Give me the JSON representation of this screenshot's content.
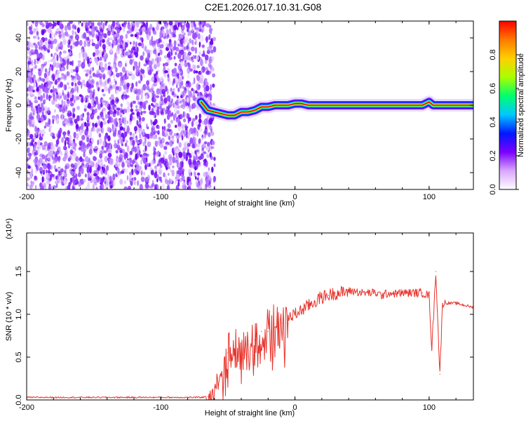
{
  "title": "C2E1.2026.017.10.31.G08",
  "chart_data": [
    {
      "type": "heatmap",
      "xlabel": "Height of straight line (km)",
      "ylabel": "Frequency (Hz)",
      "xlim": [
        -200,
        133
      ],
      "ylim": [
        -50,
        50
      ],
      "xticks": [
        "-200",
        "-100",
        "0",
        "100"
      ],
      "yticks": [
        "-40",
        "-20",
        "0",
        "20",
        "40"
      ],
      "colorbar": {
        "label": "Normalized spectral amplitude",
        "range": [
          0,
          1
        ],
        "ticks": [
          "0.0",
          "0.2",
          "0.4",
          "0.6",
          "0.8"
        ],
        "colormap": [
          "#ffffff",
          "#d9a6ff",
          "#7a00ff",
          "#0018ff",
          "#00c8ff",
          "#00ff6e",
          "#a8ff00",
          "#ffd000",
          "#ff7a00",
          "#ff0000"
        ]
      },
      "signal_track": {
        "x": [
          -70,
          -65,
          -60,
          -55,
          -50,
          -45,
          -40,
          -35,
          -30,
          -25,
          -20,
          -15,
          -10,
          -5,
          0,
          5,
          10,
          20,
          40,
          60,
          80,
          95,
          100,
          103,
          110,
          133
        ],
        "y": [
          2,
          -3,
          -4,
          -5,
          -6,
          -6,
          -4,
          -4,
          -3,
          -1,
          -1,
          0,
          0,
          0,
          1,
          1,
          0,
          0,
          0,
          0,
          0,
          0,
          2,
          0,
          0,
          0
        ]
      },
      "noise_region_x": [
        -200,
        -63
      ],
      "grid": false
    },
    {
      "type": "line",
      "xlabel": "Height of straight line (km)",
      "ylabel": "SNR (10 * v/v)",
      "multiplier": "(x10⁴)",
      "xlim": [
        -200,
        133
      ],
      "ylim": [
        0,
        1.95
      ],
      "xticks": [
        "-200",
        "-100",
        "0",
        "100"
      ],
      "yticks": [
        "0.0",
        "0.5",
        "1.0",
        "1.5"
      ],
      "color": "#e8322a",
      "grid": false,
      "series": [
        {
          "x": [
            -200,
            -180,
            -160,
            -140,
            -120,
            -100,
            -80,
            -70,
            -65,
            -60,
            -55,
            -50,
            -45,
            -40,
            -35,
            -30,
            -25,
            -20,
            -15,
            -10,
            -5,
            0,
            5,
            10,
            15,
            20,
            25,
            30,
            35,
            40,
            45,
            50,
            55,
            60,
            65,
            70,
            75,
            80,
            85,
            90,
            95,
            100,
            102,
            105,
            108,
            110,
            120,
            133
          ],
          "y": [
            0.03,
            0.03,
            0.03,
            0.03,
            0.03,
            0.03,
            0.03,
            0.03,
            0.04,
            0.15,
            0.3,
            0.55,
            0.6,
            0.5,
            0.65,
            0.7,
            0.8,
            0.8,
            0.85,
            0.9,
            0.95,
            1.0,
            1.05,
            1.1,
            1.15,
            1.2,
            1.22,
            1.25,
            1.25,
            1.27,
            1.27,
            1.25,
            1.25,
            1.25,
            1.22,
            1.25,
            1.24,
            1.25,
            1.25,
            1.25,
            1.25,
            1.22,
            0.6,
            1.5,
            0.3,
            1.13,
            1.13,
            1.08
          ]
        }
      ]
    }
  ]
}
